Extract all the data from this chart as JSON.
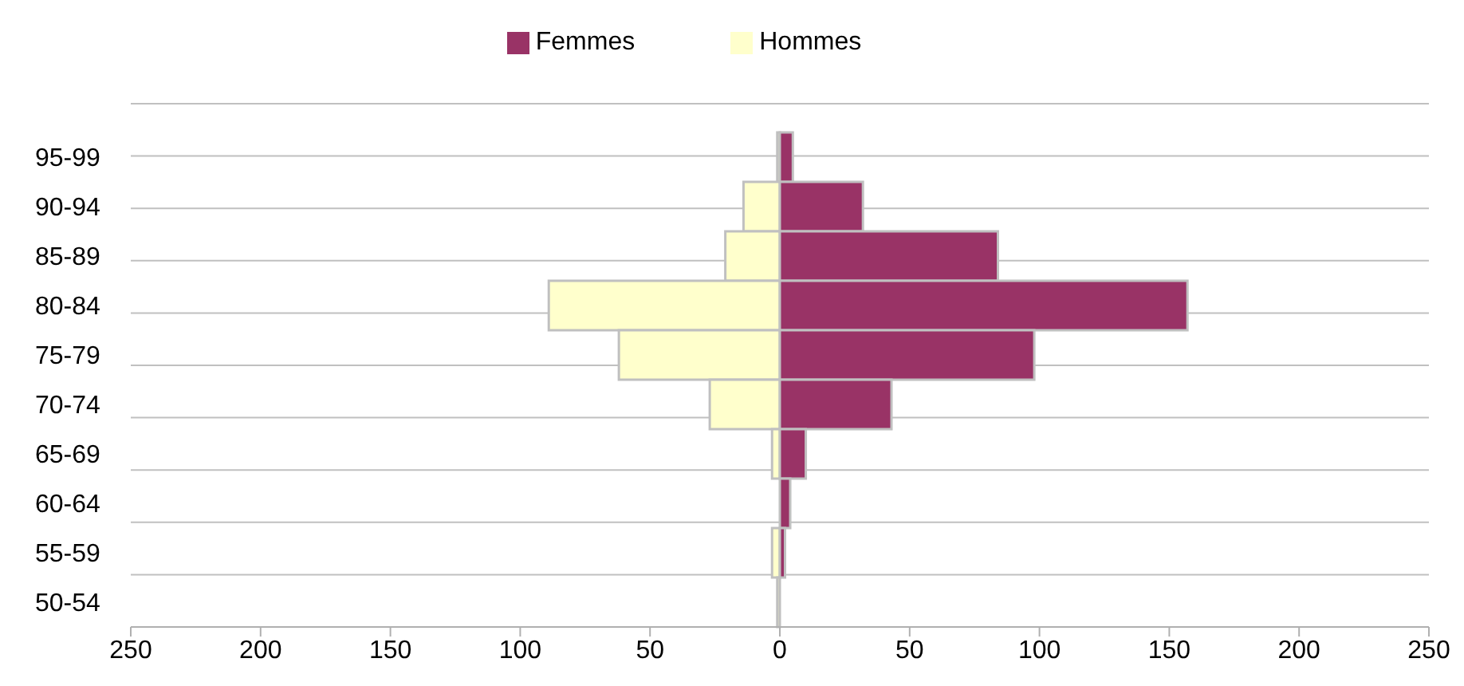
{
  "chart_data": {
    "type": "bar",
    "orientation": "horizontal",
    "stacked": true,
    "categories": [
      "95-99",
      "90-94",
      "85-89",
      "80-84",
      "75-79",
      "70-74",
      "65-69",
      "60-64",
      "55-59",
      "50-54"
    ],
    "series": [
      {
        "name": "Hommes",
        "color": "#ffffcc",
        "values": [
          -1,
          -14,
          -21,
          -89,
          -62,
          -27,
          -3,
          0,
          -3,
          -1
        ]
      },
      {
        "name": "Femmes",
        "color": "#993366",
        "values": [
          5,
          32,
          84,
          157,
          98,
          43,
          10,
          4,
          2,
          0
        ]
      }
    ],
    "xlim": [
      -250,
      250
    ],
    "xticks": [
      {
        "value": -250,
        "label": "250"
      },
      {
        "value": -200,
        "label": "200"
      },
      {
        "value": -150,
        "label": "150"
      },
      {
        "value": -100,
        "label": "100"
      },
      {
        "value": -50,
        "label": "50"
      },
      0,
      50,
      100,
      150,
      200,
      250
    ],
    "grid": "y",
    "legend": "top"
  }
}
